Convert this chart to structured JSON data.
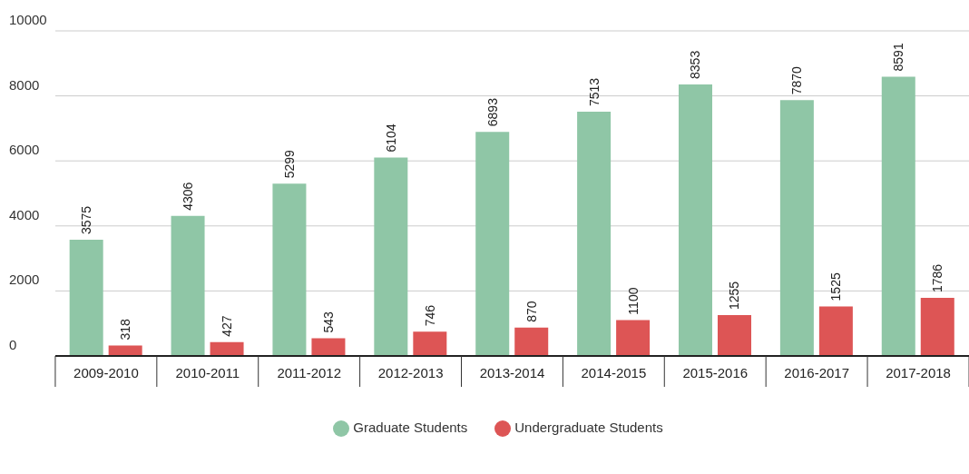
{
  "chart_data": {
    "type": "bar",
    "categories": [
      "2009-2010",
      "2010-2011",
      "2011-2012",
      "2012-2013",
      "2013-2014",
      "2014-2015",
      "2015-2016",
      "2016-2017",
      "2017-2018"
    ],
    "series": [
      {
        "name": "Graduate Students",
        "color": "#8fc6a6",
        "values": [
          3575,
          4306,
          5299,
          6104,
          6893,
          7513,
          8353,
          7870,
          8591
        ]
      },
      {
        "name": "Undergraduate Students",
        "color": "#dd5555",
        "values": [
          318,
          427,
          543,
          746,
          870,
          1100,
          1255,
          1525,
          1786
        ]
      }
    ],
    "ylim": [
      0,
      10000
    ],
    "yticks": [
      0,
      2000,
      4000,
      6000,
      8000,
      10000
    ],
    "grid": "y",
    "legend": "bottom",
    "data_labels": true
  }
}
